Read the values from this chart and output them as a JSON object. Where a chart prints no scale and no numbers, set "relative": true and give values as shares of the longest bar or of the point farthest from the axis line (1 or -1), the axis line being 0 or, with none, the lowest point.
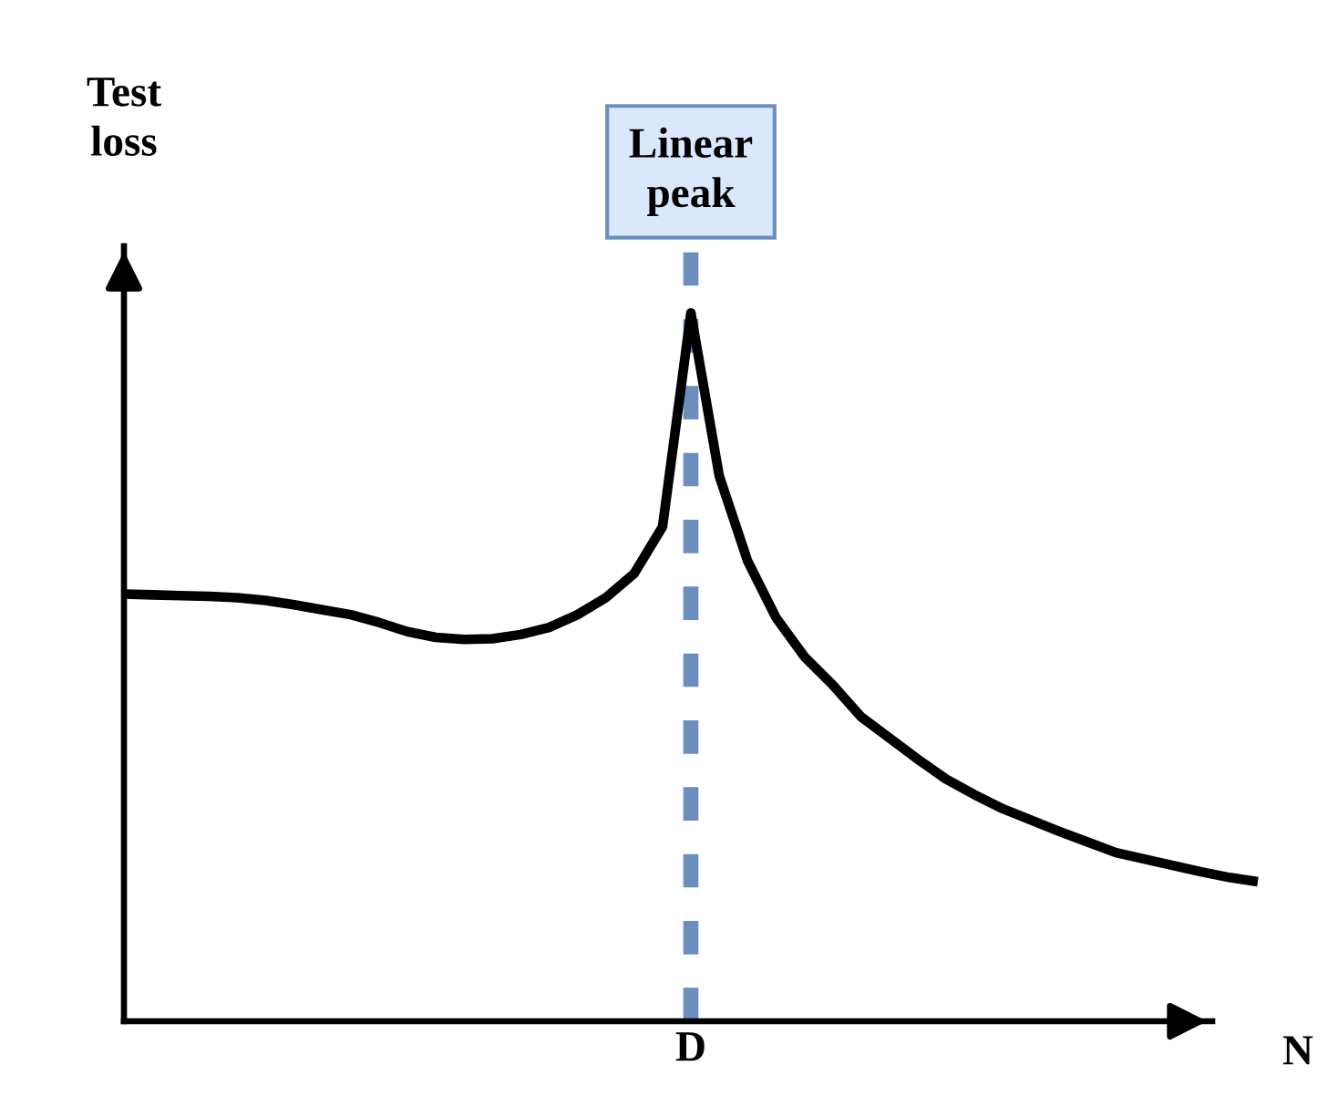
{
  "chart_data": {
    "type": "line",
    "relative": true,
    "xlabel": "N",
    "ylabel": "Test\nloss",
    "categories": [
      null,
      null,
      null,
      null,
      null,
      null,
      null,
      null,
      null,
      null,
      null,
      null,
      null,
      null,
      null,
      null,
      null,
      null,
      null,
      null,
      null,
      null,
      null,
      null,
      null,
      null,
      null,
      null,
      null,
      null,
      null,
      null,
      null,
      null,
      null,
      null,
      null,
      null,
      null,
      null,
      null
    ],
    "series": [
      {
        "color": "#000000",
        "values": [
          0.603,
          0.602,
          0.601,
          0.6,
          0.598,
          0.594,
          0.588,
          0.581,
          0.574,
          0.563,
          0.55,
          0.542,
          0.539,
          0.54,
          0.546,
          0.556,
          0.574,
          0.598,
          0.632,
          0.698,
          1.0,
          0.77,
          0.65,
          0.57,
          0.515,
          0.475,
          0.43,
          0.4,
          0.37,
          0.342,
          0.32,
          0.3,
          0.284,
          0.268,
          0.253,
          0.238,
          0.229,
          0.22,
          0.211,
          0.203,
          0.197
        ]
      }
    ],
    "annotations": [
      "Linear\npeak",
      "D"
    ]
  }
}
